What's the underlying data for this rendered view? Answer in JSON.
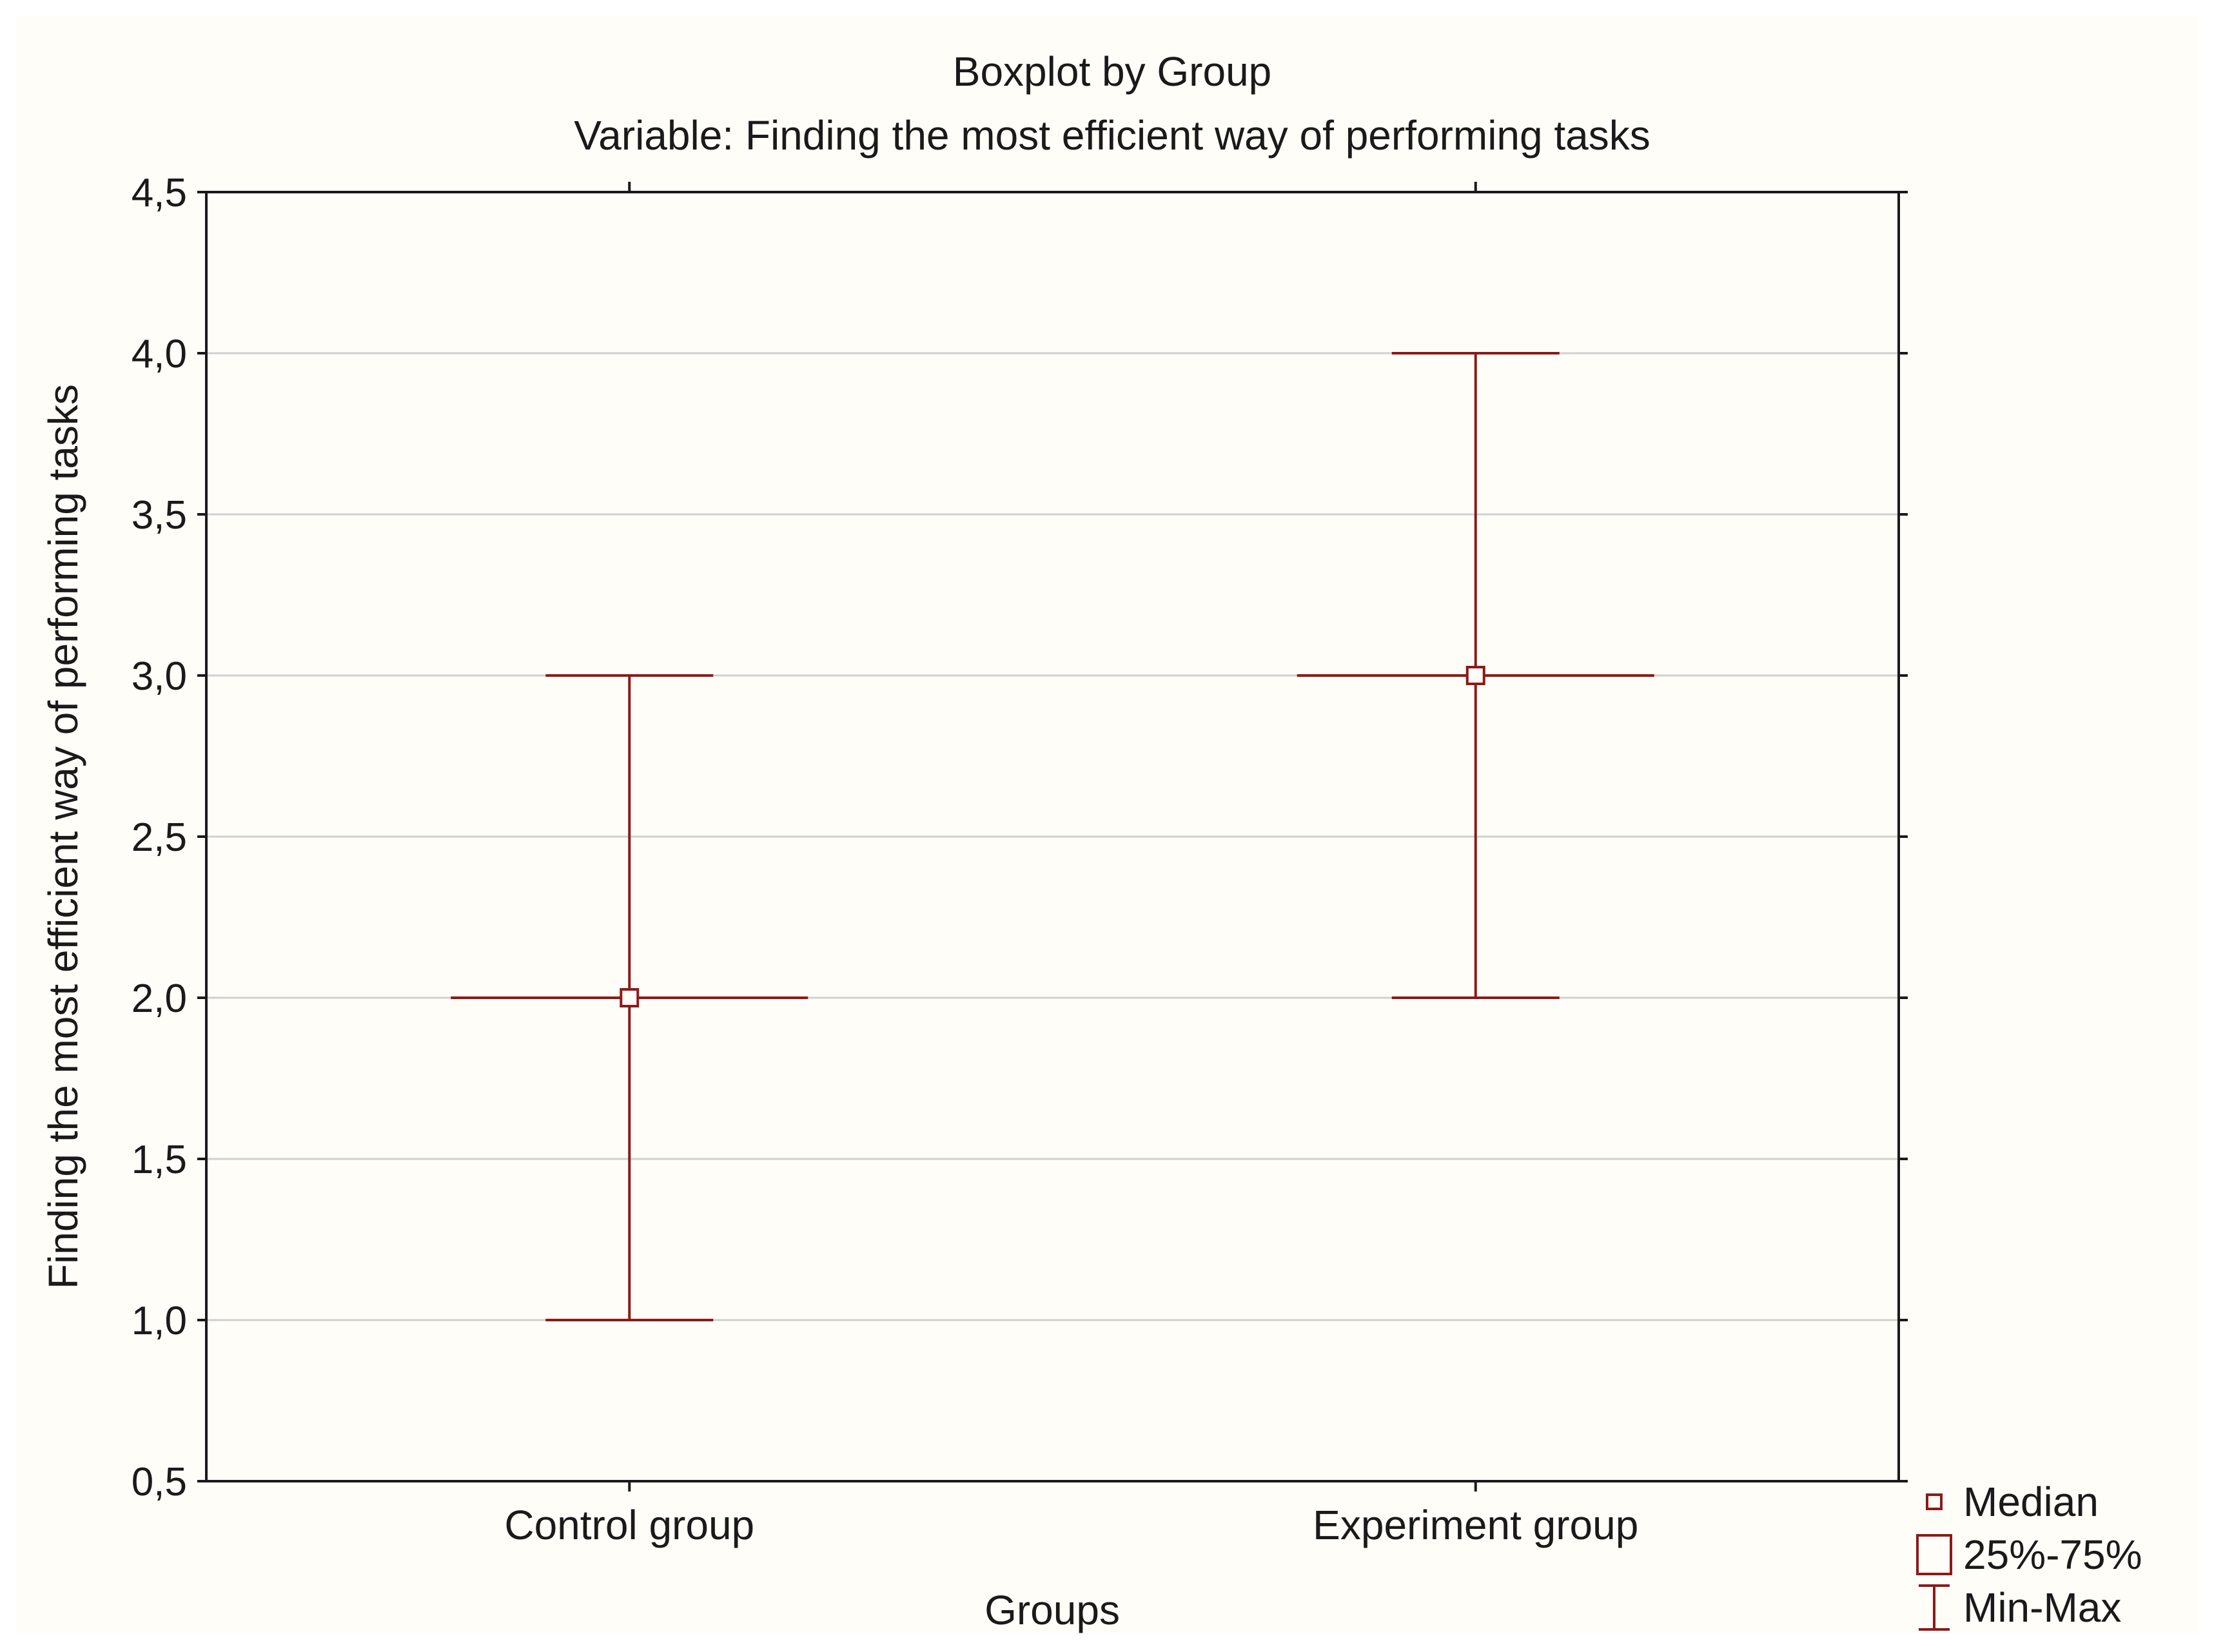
{
  "colors": {
    "background": "#fffdf7",
    "series": "#8b1a1a",
    "axis": "#1a1a1a",
    "grid": "#d0d0d0"
  },
  "chart_data": {
    "type": "boxplot",
    "title": "Boxplot by Group",
    "subtitle": "Variable: Finding the most efficient way of performing tasks",
    "xlabel": "Groups",
    "ylabel": "Finding the most efficient way of performing tasks",
    "ylim": [
      0.5,
      4.5
    ],
    "yticks": [
      0.5,
      1.0,
      1.5,
      2.0,
      2.5,
      3.0,
      3.5,
      4.0,
      4.5
    ],
    "ytick_labels": [
      "0,5",
      "1,0",
      "1,5",
      "2,0",
      "2,5",
      "3,0",
      "3,5",
      "4,0",
      "4,5"
    ],
    "grid": true,
    "categories": [
      "Control group",
      "Experiment group"
    ],
    "groups": [
      {
        "name": "Control group",
        "median": 2.0,
        "q1": 2.0,
        "q3": 2.0,
        "min": 1.0,
        "max": 3.0
      },
      {
        "name": "Experiment group",
        "median": 3.0,
        "q1": 3.0,
        "q3": 3.0,
        "min": 2.0,
        "max": 4.0
      }
    ],
    "legend": {
      "placement": "bottom-right",
      "entries": [
        {
          "symbol": "median-square",
          "label": "Median"
        },
        {
          "symbol": "box",
          "label": "25%-75%"
        },
        {
          "symbol": "whisker",
          "label": "Min-Max"
        }
      ]
    }
  }
}
